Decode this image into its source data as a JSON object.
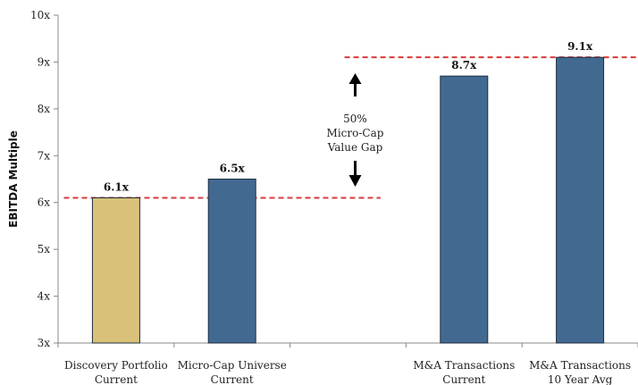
{
  "chart_data": {
    "type": "bar",
    "title": "",
    "xlabel": "",
    "ylabel": "EBITDA Multiple",
    "ylim": [
      3,
      10
    ],
    "yticks": [
      "3x",
      "4x",
      "5x",
      "6x",
      "7x",
      "8x",
      "9x",
      "10x"
    ],
    "grid": false,
    "legend": "none",
    "slots": 5,
    "categories": [
      {
        "slot": 0,
        "lines": [
          "Discovery Portfolio",
          "Current"
        ]
      },
      {
        "slot": 1,
        "lines": [
          "Micro-Cap Universe",
          "Current"
        ]
      },
      {
        "slot": 2,
        "lines": [
          "",
          ""
        ]
      },
      {
        "slot": 3,
        "lines": [
          "M&A Transactions",
          "Current"
        ]
      },
      {
        "slot": 4,
        "lines": [
          "M&A Transactions",
          "10 Year Avg"
        ]
      }
    ],
    "bars": [
      {
        "slot": 0,
        "value": 6.1,
        "label": "6.1x",
        "color": "#D9C179"
      },
      {
        "slot": 1,
        "value": 6.5,
        "label": "6.5x",
        "color": "#426A91"
      },
      {
        "slot": 3,
        "value": 8.7,
        "label": "8.7x",
        "color": "#426A91"
      },
      {
        "slot": 4,
        "value": 9.1,
        "label": "9.1x",
        "color": "#426A91"
      }
    ],
    "reference_lines": [
      {
        "value": 6.1,
        "from_slot": 0,
        "to_slot": 2,
        "color": "#D83B3B",
        "style": "dashed"
      },
      {
        "value": 9.1,
        "from_slot": 2,
        "to_slot": 4,
        "color": "#D83B3B",
        "style": "dashed"
      }
    ],
    "annotation": {
      "lines": [
        "50%",
        "Micro-Cap",
        "Value Gap"
      ],
      "arrows": "up-down"
    }
  }
}
